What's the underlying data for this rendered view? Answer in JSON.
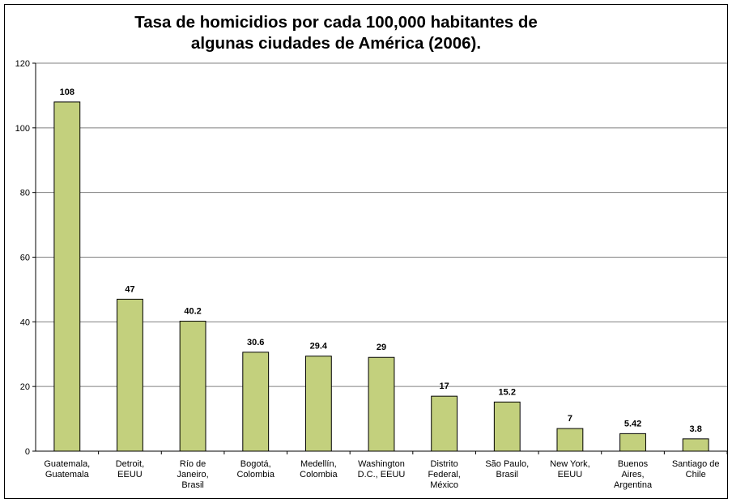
{
  "chart_data": {
    "type": "bar",
    "title_lines": [
      "Tasa de homicidios por cada 100,000 habitantes de",
      "algunas ciudades de América (2006)."
    ],
    "categories": [
      [
        "Guatemala,",
        "Guatemala"
      ],
      [
        "Detroit,",
        "EEUU"
      ],
      [
        "Río de",
        "Janeiro,",
        "Brasil"
      ],
      [
        "Bogotá,",
        "Colombia"
      ],
      [
        "Medellín,",
        "Colombia"
      ],
      [
        "Washington",
        "D.C., EEUU"
      ],
      [
        "Distrito",
        "Federal,",
        "México"
      ],
      [
        "São Paulo,",
        "Brasil"
      ],
      [
        "New York,",
        "EEUU"
      ],
      [
        "Buenos",
        "Aires,",
        "Argentina"
      ],
      [
        "Santiago de",
        "Chile"
      ]
    ],
    "values": [
      108,
      47,
      40.2,
      30.6,
      29.4,
      29,
      17,
      15.2,
      7,
      5.42,
      3.8
    ],
    "value_labels": [
      "108",
      "47",
      "40.2",
      "30.6",
      "29.4",
      "29",
      "17",
      "15.2",
      "7",
      "5.42",
      "3.8"
    ],
    "y_ticks": [
      0,
      20,
      40,
      60,
      80,
      100,
      120
    ],
    "ylim": [
      0,
      120
    ],
    "xlabel": "",
    "ylabel": "",
    "grid": true,
    "legend": "none",
    "bar_color": "#c3d07d",
    "bar_border_color": "#000000",
    "grid_color": "#808080"
  }
}
